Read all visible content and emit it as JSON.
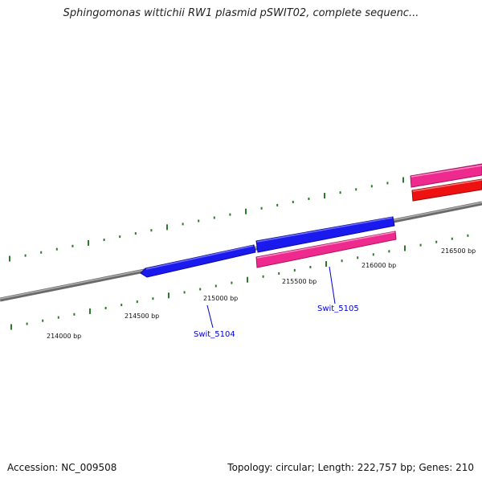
{
  "title": "Sphingomonas wittichii RW1 plasmid pSWIT02, complete sequenc...",
  "footer": {
    "accession": "Accession: NC_009508",
    "summary": "Topology: circular; Length: 222,757 bp; Genes: 210"
  },
  "ticks": {
    "labels": [
      "214000 bp",
      "214500 bp",
      "215000 bp",
      "215500 bp",
      "216000 bp",
      "216500 bp"
    ]
  },
  "genes": [
    {
      "name": "Swit_5104",
      "strand": "reverse",
      "color": "#1a1aee"
    },
    {
      "name": "Swit_5105",
      "strand": "forward",
      "color": "#1a1aee"
    },
    {
      "name": "",
      "strand": "forward",
      "color": "#ee2a8e"
    },
    {
      "name": "",
      "strand": "forward",
      "color": "#ee2a8e"
    },
    {
      "name": "",
      "strand": "forward",
      "color": "#ee1111"
    }
  ],
  "colors": {
    "backbone": "#888888",
    "ticks": "#2a7a2a",
    "gene_blue": "#1a1aee",
    "gene_pink": "#ee2a8e",
    "gene_red": "#ee1111",
    "label_blue": "#0000cc"
  }
}
